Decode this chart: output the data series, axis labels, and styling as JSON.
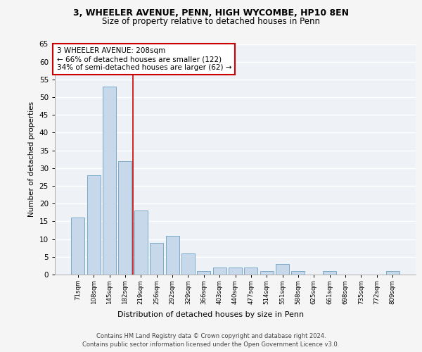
{
  "title1": "3, WHEELER AVENUE, PENN, HIGH WYCOMBE, HP10 8EN",
  "title2": "Size of property relative to detached houses in Penn",
  "xlabel": "Distribution of detached houses by size in Penn",
  "ylabel": "Number of detached properties",
  "categories": [
    "71sqm",
    "108sqm",
    "145sqm",
    "182sqm",
    "219sqm",
    "256sqm",
    "292sqm",
    "329sqm",
    "366sqm",
    "403sqm",
    "440sqm",
    "477sqm",
    "514sqm",
    "551sqm",
    "588sqm",
    "625sqm",
    "661sqm",
    "698sqm",
    "735sqm",
    "772sqm",
    "809sqm"
  ],
  "values": [
    16,
    28,
    53,
    32,
    18,
    9,
    11,
    6,
    1,
    2,
    2,
    2,
    1,
    3,
    1,
    0,
    1,
    0,
    0,
    0,
    1
  ],
  "bar_color": "#c8d8eb",
  "bar_edge_color": "#7aaac8",
  "vline_x": 4,
  "vline_color": "#cc0000",
  "annotation_text": "3 WHEELER AVENUE: 208sqm\n← 66% of detached houses are smaller (122)\n34% of semi-detached houses are larger (62) →",
  "annotation_box_color": "#ffffff",
  "annotation_box_edge_color": "#cc0000",
  "ylim": [
    0,
    65
  ],
  "yticks": [
    0,
    5,
    10,
    15,
    20,
    25,
    30,
    35,
    40,
    45,
    50,
    55,
    60,
    65
  ],
  "background_color": "#eef2f7",
  "grid_color": "#ffffff",
  "footer_line1": "Contains HM Land Registry data © Crown copyright and database right 2024.",
  "footer_line2": "Contains public sector information licensed under the Open Government Licence v3.0."
}
